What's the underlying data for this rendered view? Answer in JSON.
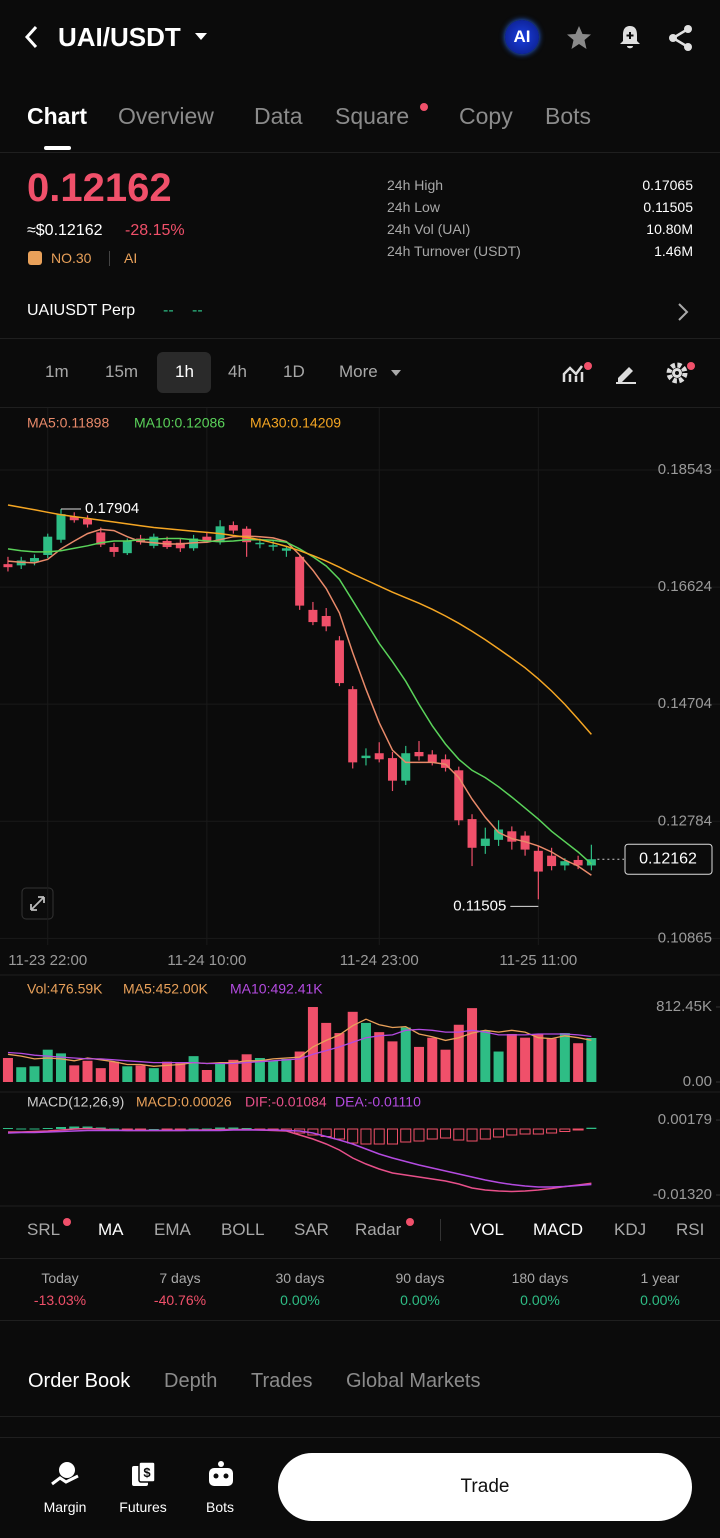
{
  "header": {
    "pair": "UAI/USDT",
    "ai_badge": "AI"
  },
  "tabs": [
    "Chart",
    "Overview",
    "Data",
    "Square",
    "Copy",
    "Bots"
  ],
  "ticker": {
    "price": "0.12162",
    "usd": "≈$0.12162",
    "change": "-28.15%",
    "rank": "NO.30",
    "tag": "AI"
  },
  "stats": [
    {
      "label": "24h High",
      "value": "0.17065"
    },
    {
      "label": "24h Low",
      "value": "0.11505"
    },
    {
      "label": "24h Vol (UAI)",
      "value": "10.80M"
    },
    {
      "label": "24h Turnover (USDT)",
      "value": "1.46M"
    }
  ],
  "perp": {
    "name": "UAIUSDT Perp",
    "v1": "--",
    "v2": "--"
  },
  "intervals": [
    "1m",
    "15m",
    "1h",
    "4h",
    "1D",
    "More"
  ],
  "chart_data": {
    "type": "candlestick",
    "up_color": "#2ebd85",
    "down_color": "#f0506a",
    "ma_legend": [
      {
        "text": "MA5:0.11898",
        "color": "#e98a6a"
      },
      {
        "text": "MA10:0.12086",
        "color": "#5ad35a"
      },
      {
        "text": "MA30:0.14209",
        "color": "#f5a623"
      }
    ],
    "candles": [
      [
        0.17,
        0.1712,
        0.1688,
        0.1695
      ],
      [
        0.1698,
        0.1712,
        0.1692,
        0.1706
      ],
      [
        0.1704,
        0.1716,
        0.1698,
        0.171
      ],
      [
        0.1715,
        0.175,
        0.171,
        0.1745
      ],
      [
        0.174,
        0.17904,
        0.1735,
        0.1782
      ],
      [
        0.1778,
        0.1785,
        0.1768,
        0.1772
      ],
      [
        0.1774,
        0.178,
        0.176,
        0.1765
      ],
      [
        0.1752,
        0.176,
        0.1728,
        0.1732
      ],
      [
        0.1728,
        0.1735,
        0.1712,
        0.172
      ],
      [
        0.1718,
        0.1742,
        0.1715,
        0.1738
      ],
      [
        0.1742,
        0.1748,
        0.1732,
        0.1736
      ],
      [
        0.173,
        0.175,
        0.1726,
        0.1745
      ],
      [
        0.1738,
        0.1745,
        0.1725,
        0.1728
      ],
      [
        0.1735,
        0.1742,
        0.172,
        0.1726
      ],
      [
        0.1726,
        0.1748,
        0.1722,
        0.1742
      ],
      [
        0.1745,
        0.1752,
        0.1735,
        0.1738
      ],
      [
        0.1736,
        0.1772,
        0.1732,
        0.1762
      ],
      [
        0.1764,
        0.177,
        0.175,
        0.1755
      ],
      [
        0.1758,
        0.1762,
        0.1712,
        0.1736
      ],
      [
        0.1734,
        0.1742,
        0.1726,
        0.1735
      ],
      [
        0.173,
        0.1738,
        0.1722,
        0.1731
      ],
      [
        0.1722,
        0.173,
        0.1712,
        0.1726
      ],
      [
        0.1712,
        0.1715,
        0.1625,
        0.1632
      ],
      [
        0.1625,
        0.1638,
        0.16,
        0.1605
      ],
      [
        0.1615,
        0.1628,
        0.159,
        0.1598
      ],
      [
        0.1575,
        0.1582,
        0.15,
        0.1505
      ],
      [
        0.1495,
        0.15,
        0.1365,
        0.1375
      ],
      [
        0.1382,
        0.1398,
        0.137,
        0.1386
      ],
      [
        0.139,
        0.1408,
        0.1375,
        0.138
      ],
      [
        0.1382,
        0.1392,
        0.1328,
        0.1345
      ],
      [
        0.1345,
        0.1402,
        0.1338,
        0.139
      ],
      [
        0.1392,
        0.141,
        0.1378,
        0.1385
      ],
      [
        0.1388,
        0.1395,
        0.137,
        0.1375
      ],
      [
        0.138,
        0.1388,
        0.136,
        0.1366
      ],
      [
        0.1362,
        0.1368,
        0.1272,
        0.128
      ],
      [
        0.1282,
        0.129,
        0.1205,
        0.1235
      ],
      [
        0.1238,
        0.1268,
        0.1225,
        0.125
      ],
      [
        0.1248,
        0.128,
        0.1238,
        0.1265
      ],
      [
        0.1262,
        0.127,
        0.1232,
        0.1245
      ],
      [
        0.1255,
        0.1262,
        0.1222,
        0.1232
      ],
      [
        0.123,
        0.1238,
        0.11505,
        0.1196
      ],
      [
        0.1222,
        0.1235,
        0.1198,
        0.1205
      ],
      [
        0.1206,
        0.1218,
        0.1198,
        0.1213
      ],
      [
        0.1215,
        0.1222,
        0.12,
        0.1206
      ],
      [
        0.1206,
        0.124,
        0.1198,
        0.12162
      ]
    ],
    "ma": [
      {
        "color": "#e98a6a",
        "values": [
          0.1705,
          0.1703,
          0.1702,
          0.1708,
          0.1725,
          0.1738,
          0.175,
          0.1757,
          0.1755,
          0.1745,
          0.1737,
          0.1735,
          0.1733,
          0.1733,
          0.1735,
          0.1736,
          0.174,
          0.1745,
          0.1746,
          0.1745,
          0.1743,
          0.1737,
          0.1715,
          0.169,
          0.166,
          0.162,
          0.1555,
          0.1495,
          0.144,
          0.1395,
          0.1375,
          0.1375,
          0.1375,
          0.1372,
          0.135,
          0.1315,
          0.1285,
          0.126,
          0.125,
          0.1245,
          0.1238,
          0.1228,
          0.1215,
          0.1205,
          0.11898
        ]
      },
      {
        "color": "#5ad35a",
        "values": [
          0.1725,
          0.1722,
          0.172,
          0.172,
          0.1722,
          0.1726,
          0.173,
          0.1735,
          0.1738,
          0.1738,
          0.174,
          0.1741,
          0.1742,
          0.1742,
          0.174,
          0.1738,
          0.1737,
          0.1738,
          0.174,
          0.174,
          0.1739,
          0.1736,
          0.1725,
          0.1712,
          0.1697,
          0.1675,
          0.164,
          0.1605,
          0.157,
          0.154,
          0.1508,
          0.147,
          0.1435,
          0.1405,
          0.138,
          0.1362,
          0.135,
          0.1335,
          0.1318,
          0.13,
          0.1282,
          0.1262,
          0.1245,
          0.1228,
          0.12086
        ]
      },
      {
        "color": "#f5a623",
        "values": [
          0.1797,
          0.1793,
          0.1789,
          0.1785,
          0.1781,
          0.1778,
          0.1775,
          0.1772,
          0.1769,
          0.1766,
          0.1763,
          0.176,
          0.1758,
          0.1756,
          0.1754,
          0.1752,
          0.175,
          0.1747,
          0.1744,
          0.174,
          0.1735,
          0.1729,
          0.1722,
          0.1714,
          0.1705,
          0.1695,
          0.1684,
          0.1674,
          0.1664,
          0.1654,
          0.1645,
          0.1636,
          0.1626,
          0.1615,
          0.1603,
          0.159,
          0.1576,
          0.1561,
          0.1546,
          0.153,
          0.1512,
          0.1492,
          0.147,
          0.1446,
          0.14209
        ]
      }
    ],
    "xlim": [
      -0.6,
      53.7
    ],
    "ylim": [
      0.10756,
      0.19199
    ],
    "yticks": [
      0.18543,
      0.16624,
      0.14704,
      0.12784,
      0.10865
    ],
    "xticks": [
      {
        "value": 3,
        "label": "11-23 22:00"
      },
      {
        "value": 15,
        "label": "11-24 10:00"
      },
      {
        "value": 28,
        "label": "11-24 23:00"
      },
      {
        "value": 40,
        "label": "11-25 11:00"
      }
    ],
    "high_label": 0.17904,
    "low_label": 0.11505,
    "last_price": 0.12162,
    "volume": {
      "legend": [
        {
          "text": "Vol:476.59K",
          "color": "#e9a15a"
        },
        {
          "text": "MA5:452.00K",
          "color": "#e9a15a"
        },
        {
          "text": "MA10:492.41K",
          "color": "#b44be1"
        }
      ],
      "values": [
        260000,
        160000,
        170000,
        350000,
        310000,
        180000,
        230000,
        150000,
        220000,
        170000,
        180000,
        150000,
        220000,
        210000,
        280000,
        130000,
        200000,
        240000,
        300000,
        260000,
        230000,
        250000,
        330000,
        812000,
        640000,
        530000,
        760000,
        640000,
        540000,
        440000,
        590000,
        380000,
        480000,
        350000,
        620000,
        800000,
        560000,
        330000,
        520000,
        480000,
        520000,
        470000,
        530000,
        420000,
        476590
      ],
      "ma": [
        {
          "color": "#e9a15a",
          "values": [
            300000,
            280000,
            250000,
            260000,
            250000,
            230000,
            260000,
            240000,
            220000,
            190000,
            190000,
            170000,
            180000,
            190000,
            210000,
            200000,
            210000,
            210000,
            230000,
            230000,
            250000,
            260000,
            270000,
            380000,
            450000,
            510000,
            610000,
            680000,
            620000,
            590000,
            600000,
            520000,
            490000,
            450000,
            480000,
            530000,
            560000,
            540000,
            560000,
            540000,
            480000,
            470000,
            500000,
            480000,
            452000
          ]
        },
        {
          "color": "#b44be1",
          "values": [
            320000,
            310000,
            290000,
            280000,
            270000,
            260000,
            250000,
            250000,
            240000,
            230000,
            220000,
            210000,
            210000,
            210000,
            210000,
            200000,
            200000,
            200000,
            210000,
            220000,
            230000,
            240000,
            250000,
            300000,
            340000,
            380000,
            430000,
            480000,
            500000,
            510000,
            560000,
            570000,
            560000,
            540000,
            540000,
            560000,
            540000,
            510000,
            510000,
            510000,
            520000,
            520000,
            520000,
            510000,
            492410
          ]
        }
      ],
      "ylim": [
        0,
        888000
      ],
      "yticks": [
        {
          "value": 812450,
          "label": "812.45K"
        },
        {
          "value": 0,
          "label": "0.00"
        }
      ]
    },
    "macd": {
      "legend": [
        {
          "text": "MACD(12,26,9)",
          "color": "#cfcfcf"
        },
        {
          "text": "MACD:0.00026",
          "color": "#e9a15a"
        },
        {
          "text": "DIF:-0.01084",
          "color": "#e8508a"
        },
        {
          "text": "DEA:-0.01110",
          "color": "#b44be1"
        }
      ],
      "hist": [
        0.0002,
        0.0001,
        0.0001,
        0.0002,
        0.0004,
        0.0005,
        0.0005,
        0.0003,
        0.0001,
        -0.0001,
        -0.0001,
        0,
        -0.0001,
        -0.0001,
        0.0001,
        0.0001,
        0.0003,
        0.0003,
        0.0002,
        -0.0001,
        -0.0002,
        -0.0003,
        -0.0008,
        -0.0012,
        -0.0015,
        -0.002,
        -0.0028,
        -0.003,
        -0.003,
        -0.003,
        -0.0026,
        -0.0024,
        -0.002,
        -0.0018,
        -0.0022,
        -0.0024,
        -0.002,
        -0.0016,
        -0.0012,
        -0.001,
        -0.001,
        -0.0008,
        -0.0005,
        -0.0002,
        0.00026
      ],
      "dif": {
        "color": "#e8508a",
        "values": [
          -0.0006,
          -0.0006,
          -0.0005,
          -0.0004,
          -0.0002,
          0,
          0.0001,
          0,
          -0.0002,
          -0.0003,
          -0.0003,
          -0.0003,
          -0.0003,
          -0.0003,
          -0.0002,
          -0.0002,
          -0.0001,
          -0.0001,
          -0.0001,
          -0.0002,
          -0.0003,
          -0.0004,
          -0.0012,
          -0.002,
          -0.003,
          -0.0042,
          -0.0058,
          -0.007,
          -0.008,
          -0.0088,
          -0.0092,
          -0.0096,
          -0.01,
          -0.0104,
          -0.011,
          -0.0118,
          -0.0122,
          -0.0124,
          -0.0125,
          -0.0124,
          -0.0122,
          -0.0119,
          -0.0115,
          -0.0112,
          -0.01084
        ]
      },
      "dea": {
        "color": "#b44be1",
        "values": [
          -0.0008,
          -0.0007,
          -0.0007,
          -0.0006,
          -0.0005,
          -0.0004,
          -0.0003,
          -0.0003,
          -0.0003,
          -0.0003,
          -0.0003,
          -0.0003,
          -0.0003,
          -0.0003,
          -0.0003,
          -0.0003,
          -0.0003,
          -0.0002,
          -0.0002,
          -0.0002,
          -0.0002,
          -0.0003,
          -0.0004,
          -0.0008,
          -0.0015,
          -0.0022,
          -0.003,
          -0.004,
          -0.005,
          -0.0058,
          -0.0065,
          -0.0072,
          -0.0078,
          -0.0084,
          -0.009,
          -0.0096,
          -0.0102,
          -0.0107,
          -0.0111,
          -0.0114,
          -0.0116,
          -0.0116,
          -0.0115,
          -0.0113,
          -0.0111
        ]
      },
      "ylim": [
        -0.0142,
        0.0034
      ],
      "yticks": [
        0.00179,
        {
          "value": -0.0132,
          "label": "-0.01320"
        }
      ]
    }
  },
  "indicators": [
    "SRL",
    "MA",
    "EMA",
    "BOLL",
    "SAR",
    "Radar",
    "VOL",
    "MACD",
    "KDJ",
    "RSI"
  ],
  "periods": [
    {
      "label": "Today",
      "value": "-13.03%"
    },
    {
      "label": "7 days",
      "value": "-40.76%"
    },
    {
      "label": "30 days",
      "value": "0.00%"
    },
    {
      "label": "90 days",
      "value": "0.00%"
    },
    {
      "label": "180 days",
      "value": "0.00%"
    },
    {
      "label": "1 year",
      "value": "0.00%"
    }
  ],
  "book_tabs": [
    "Order Book",
    "Depth",
    "Trades",
    "Global Markets"
  ],
  "nav": [
    "Margin",
    "Futures",
    "Bots"
  ],
  "trade": "Trade"
}
